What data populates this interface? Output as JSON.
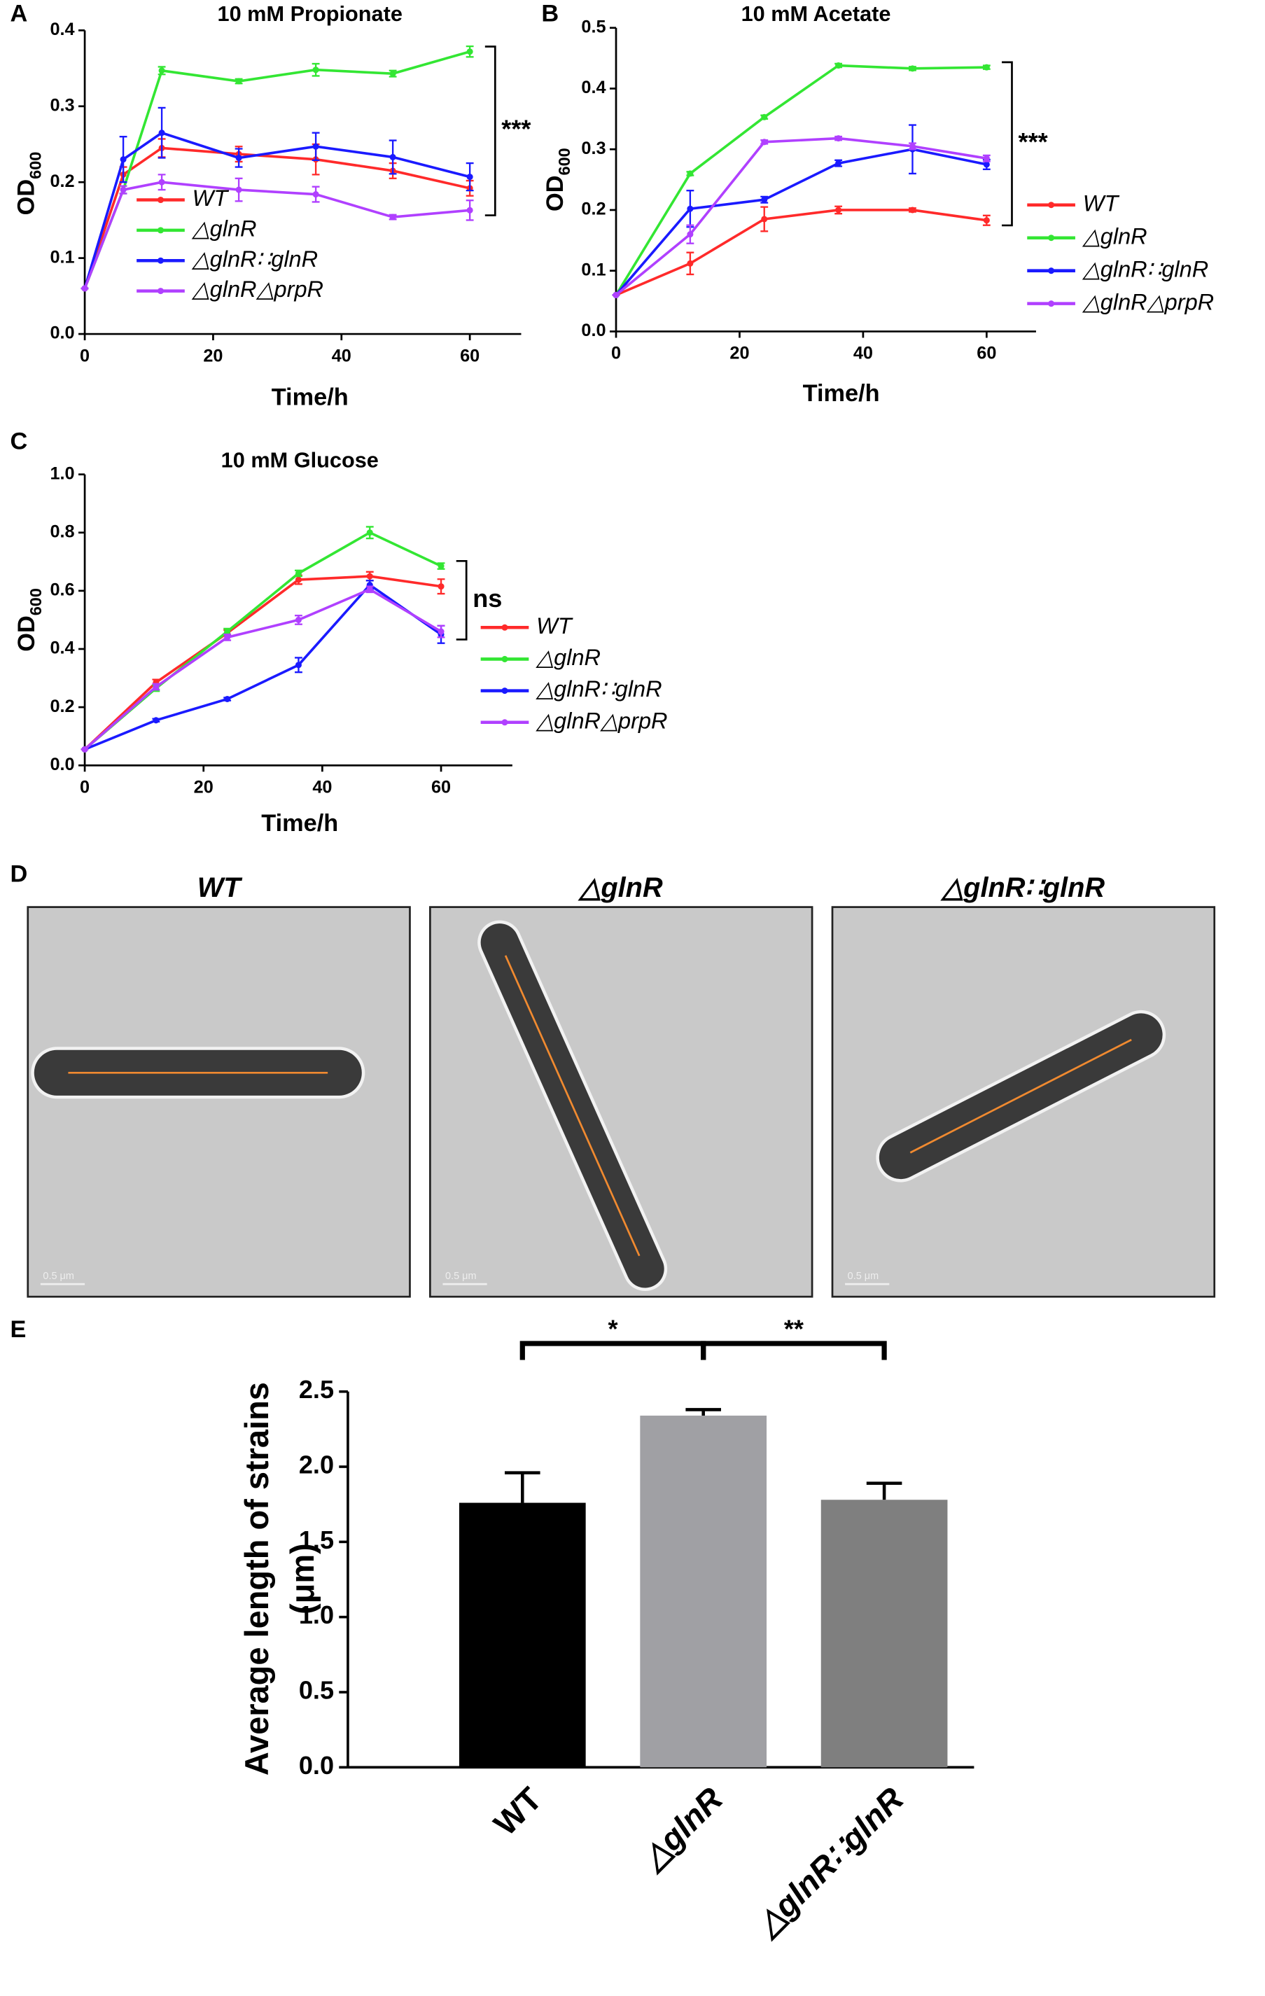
{
  "chart_data": [
    {
      "type": "line",
      "panel": "A",
      "title": "10 mM Propionate",
      "xlabel": "Time/h",
      "ylabel": {
        "text": "OD",
        "sub": "600"
      },
      "x": [
        0,
        6,
        12,
        24,
        36,
        48,
        60
      ],
      "xlim": [
        0,
        68
      ],
      "xticks": [
        0,
        20,
        40,
        60
      ],
      "ylim": [
        0,
        0.4
      ],
      "yticks": [
        {
          "value": 0,
          "label": "0.0"
        },
        0.1,
        0.2,
        0.3,
        0.4
      ],
      "legend": "lower center",
      "annotation": "***",
      "series": [
        {
          "name": "WT",
          "color": "#ff2a2a",
          "values": [
            0.06,
            0.21,
            0.245,
            0.237,
            0.23,
            0.215,
            0.192
          ],
          "errors": [
            0,
            0.01,
            0.012,
            0.01,
            0.02,
            0.01,
            0.01
          ]
        },
        {
          "name": "△glnR",
          "color": "#33e633",
          "values": [
            0.06,
            0.19,
            0.347,
            0.333,
            0.348,
            0.343,
            0.372
          ],
          "errors": [
            0,
            0.005,
            0.005,
            0.003,
            0.008,
            0.004,
            0.007
          ]
        },
        {
          "name": "△glnR∷glnR",
          "color": "#1a1aff",
          "values": [
            0.06,
            0.23,
            0.265,
            0.232,
            0.247,
            0.233,
            0.207
          ],
          "errors": [
            0,
            0.03,
            0.033,
            0.012,
            0.018,
            0.022,
            0.018
          ]
        },
        {
          "name": "△glnR△prpR",
          "color": "#b040ff",
          "values": [
            0.06,
            0.19,
            0.2,
            0.19,
            0.184,
            0.154,
            0.163
          ],
          "errors": [
            0,
            0.005,
            0.01,
            0.015,
            0.01,
            0.003,
            0.013
          ]
        }
      ]
    },
    {
      "type": "line",
      "panel": "B",
      "title": "10 mM Acetate",
      "xlabel": "Time/h",
      "ylabel": {
        "text": "OD",
        "sub": "600"
      },
      "x": [
        0,
        12,
        24,
        36,
        48,
        60
      ],
      "xlim": [
        0,
        68
      ],
      "xticks": [
        0,
        20,
        40,
        60
      ],
      "ylim": [
        0,
        0.5
      ],
      "yticks": [
        {
          "value": 0,
          "label": "0.0"
        },
        0.1,
        0.2,
        0.3,
        0.4,
        0.5
      ],
      "legend": "right",
      "annotation": "***",
      "series": [
        {
          "name": "WT",
          "color": "#ff2a2a",
          "values": [
            0.06,
            0.112,
            0.185,
            0.2,
            0.2,
            0.183
          ],
          "errors": [
            0,
            0.018,
            0.02,
            0.006,
            0.003,
            0.008
          ]
        },
        {
          "name": "△glnR",
          "color": "#33e633",
          "values": [
            0.06,
            0.26,
            0.353,
            0.438,
            0.433,
            0.435
          ],
          "errors": [
            0,
            0.003,
            0.003,
            0.003,
            0.003,
            0.003
          ]
        },
        {
          "name": "△glnR∷glnR",
          "color": "#1a1aff",
          "values": [
            0.06,
            0.202,
            0.217,
            0.277,
            0.3,
            0.275
          ],
          "errors": [
            0,
            0.03,
            0.005,
            0.005,
            0.04,
            0.008
          ]
        },
        {
          "name": "△glnR△prpR",
          "color": "#b040ff",
          "values": [
            0.06,
            0.16,
            0.312,
            0.318,
            0.305,
            0.285
          ],
          "errors": [
            0,
            0.015,
            0.003,
            0.003,
            0.005,
            0.005
          ]
        }
      ]
    },
    {
      "type": "line",
      "panel": "C",
      "title": "10 mM Glucose",
      "xlabel": "Time/h",
      "ylabel": {
        "text": "OD",
        "sub": "600"
      },
      "x": [
        0,
        12,
        24,
        36,
        48,
        60
      ],
      "xlim": [
        0,
        72
      ],
      "xticks": [
        0,
        20,
        40,
        60
      ],
      "ylim": [
        0,
        1
      ],
      "yticks": [
        {
          "value": 0,
          "label": "0.0"
        },
        0.2,
        0.4,
        0.6,
        0.8,
        {
          "value": 1,
          "label": "1.0"
        }
      ],
      "legend": "right",
      "annotation": "ns",
      "series": [
        {
          "name": "WT",
          "color": "#ff2a2a",
          "values": [
            0.055,
            0.285,
            0.455,
            0.638,
            0.65,
            0.615
          ],
          "errors": [
            0,
            0.01,
            0.01,
            0.015,
            0.015,
            0.025
          ]
        },
        {
          "name": "△glnR",
          "color": "#33e633",
          "values": [
            0.055,
            0.265,
            0.46,
            0.66,
            0.8,
            0.685
          ],
          "errors": [
            0,
            0.01,
            0.01,
            0.01,
            0.02,
            0.01
          ]
        },
        {
          "name": "△glnR∷glnR",
          "color": "#1a1aff",
          "values": [
            0.055,
            0.155,
            0.228,
            0.345,
            0.62,
            0.45
          ],
          "errors": [
            0,
            0.005,
            0.005,
            0.025,
            0.015,
            0.03
          ]
        },
        {
          "name": "△glnR△prpR",
          "color": "#b040ff",
          "values": [
            0.055,
            0.27,
            0.44,
            0.5,
            0.605,
            0.46
          ],
          "errors": [
            0,
            0.01,
            0.01,
            0.015,
            0.01,
            0.02
          ]
        }
      ]
    },
    {
      "type": "image",
      "panel": "D",
      "labels": [
        "WT",
        "△glnR",
        "△glnR∷glnR"
      ],
      "scale_bar": "0.5 μm"
    },
    {
      "type": "bar",
      "panel": "E",
      "ylabel": [
        "Average length of strains",
        "(μm)"
      ],
      "categories": [
        "WT",
        "△glnR",
        "△glnR∷glnR"
      ],
      "values": [
        1.76,
        2.34,
        1.78
      ],
      "errors": [
        0.2,
        0.04,
        0.11
      ],
      "colors": [
        "#000000",
        "#a0a0a4",
        "#7f7f7f"
      ],
      "ylim": [
        0,
        2.5
      ],
      "yticks": [
        {
          "value": 0,
          "label": "0.0"
        },
        0.5,
        {
          "value": 1,
          "label": "1.0"
        },
        1.5,
        {
          "value": 2,
          "label": "2.0"
        },
        2.5
      ],
      "annotations": [
        "*",
        "**"
      ]
    }
  ]
}
